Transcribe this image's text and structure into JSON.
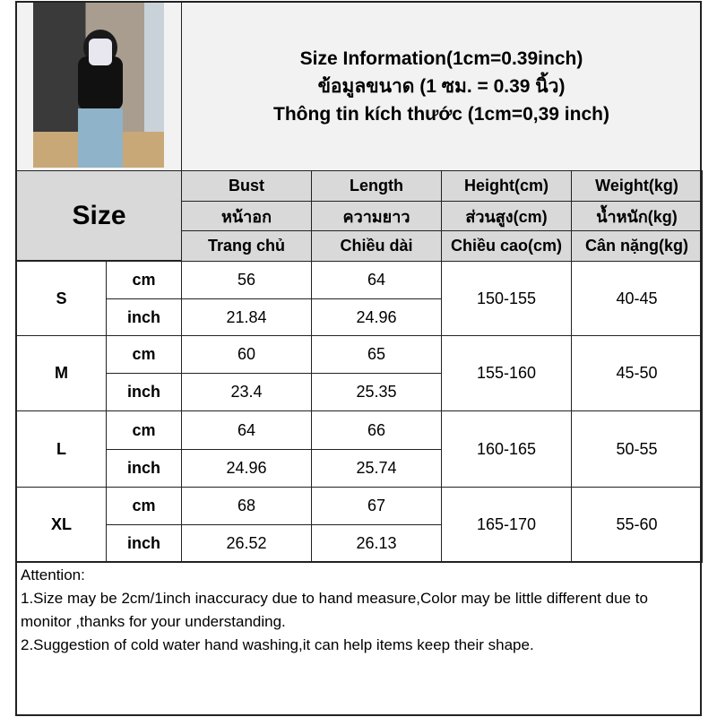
{
  "title": {
    "line1": "Size Information(1cm=0.39inch)",
    "line2": "ข้อมูลขนาด (1 ซม. = 0.39 นิ้ว)",
    "line3": "Thông tin kích thước (1cm=0,39 inch)"
  },
  "size_header": "Size",
  "columns": [
    {
      "en": "Bust",
      "th": "หน้าอก",
      "vi": "Trang chủ"
    },
    {
      "en": "Length",
      "th": "ความยาว",
      "vi": "Chiều dài"
    },
    {
      "en": "Height(cm)",
      "th": "ส่วนสูง(cm)",
      "vi": "Chiều cao(cm)"
    },
    {
      "en": "Weight(kg)",
      "th": "น้ำหนัก(kg)",
      "vi": "Cân nặng(kg)"
    }
  ],
  "units": {
    "cm": "cm",
    "inch": "inch"
  },
  "rows": [
    {
      "size": "S",
      "bust_cm": "56",
      "bust_in": "21.84",
      "length_cm": "64",
      "length_in": "24.96",
      "height": "150-155",
      "weight": "40-45"
    },
    {
      "size": "M",
      "bust_cm": "60",
      "bust_in": "23.4",
      "length_cm": "65",
      "length_in": "25.35",
      "height": "155-160",
      "weight": "45-50"
    },
    {
      "size": "L",
      "bust_cm": "64",
      "bust_in": "24.96",
      "length_cm": "66",
      "length_in": "25.74",
      "height": "160-165",
      "weight": "50-55"
    },
    {
      "size": "XL",
      "bust_cm": "68",
      "bust_in": "26.52",
      "length_cm": "67",
      "length_in": "26.13",
      "height": "165-170",
      "weight": "55-60"
    }
  ],
  "attention": {
    "heading": "Attention:",
    "note1": "1.Size may be 2cm/1inch inaccuracy due to hand measure,Color may be little different due to monitor ,thanks for your understanding.",
    "note2": "2.Suggestion of cold water hand washing,it can help items keep their shape."
  }
}
